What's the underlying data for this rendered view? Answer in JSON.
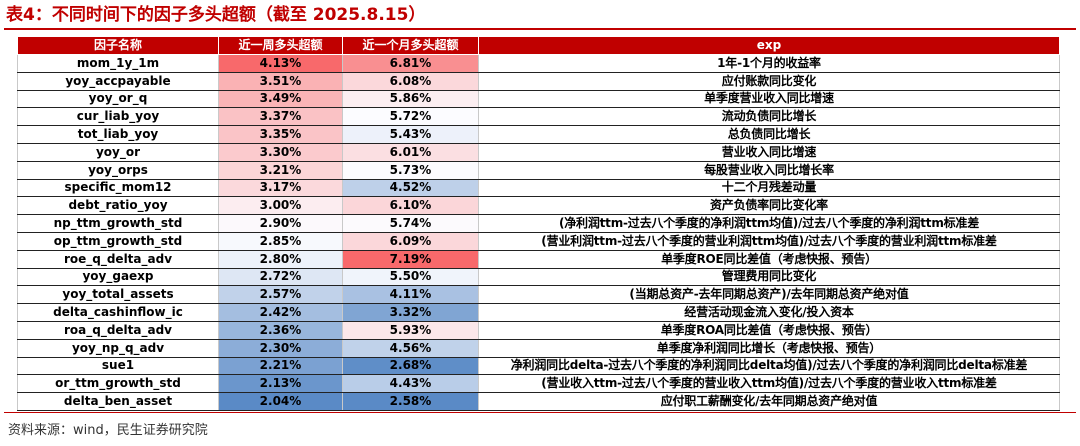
{
  "title": "表4：不同时间下的因子多头超额（截至 2025.8.15）",
  "table": {
    "headers": [
      "因子名称",
      "近一周多头超额",
      "近一个月多头超额",
      "exp"
    ],
    "rows": [
      {
        "name": "mom_1y_1m",
        "week": "4.13%",
        "week_val": 4.13,
        "month": "6.81%",
        "month_val": 6.81,
        "exp": "1年-1个月的收益率"
      },
      {
        "name": "yoy_accpayable",
        "week": "3.51%",
        "week_val": 3.51,
        "month": "6.08%",
        "month_val": 6.08,
        "exp": "应付账款同比变化"
      },
      {
        "name": "yoy_or_q",
        "week": "3.49%",
        "week_val": 3.49,
        "month": "5.86%",
        "month_val": 5.86,
        "exp": "单季度营业收入同比增速"
      },
      {
        "name": "cur_liab_yoy",
        "week": "3.37%",
        "week_val": 3.37,
        "month": "5.72%",
        "month_val": 5.72,
        "exp": "流动负债同比增长"
      },
      {
        "name": "tot_liab_yoy",
        "week": "3.35%",
        "week_val": 3.35,
        "month": "5.43%",
        "month_val": 5.43,
        "exp": "总负债同比增长"
      },
      {
        "name": "yoy_or",
        "week": "3.30%",
        "week_val": 3.3,
        "month": "6.01%",
        "month_val": 6.01,
        "exp": "营业收入同比增速"
      },
      {
        "name": "yoy_orps",
        "week": "3.21%",
        "week_val": 3.21,
        "month": "5.73%",
        "month_val": 5.73,
        "exp": "每股营业收入同比增长率"
      },
      {
        "name": "specific_mom12",
        "week": "3.17%",
        "week_val": 3.17,
        "month": "4.52%",
        "month_val": 4.52,
        "exp": "十二个月残差动量"
      },
      {
        "name": "debt_ratio_yoy",
        "week": "3.00%",
        "week_val": 3.0,
        "month": "6.10%",
        "month_val": 6.1,
        "exp": "资产负债率同比变化率"
      },
      {
        "name": "np_ttm_growth_std",
        "week": "2.90%",
        "week_val": 2.9,
        "month": "5.74%",
        "month_val": 5.74,
        "exp": "(净利润ttm-过去八个季度的净利润ttm均值)/过去八个季度的净利润ttm标准差"
      },
      {
        "name": "op_ttm_growth_std",
        "week": "2.85%",
        "week_val": 2.85,
        "month": "6.09%",
        "month_val": 6.09,
        "exp": "(营业利润ttm-过去八个季度的营业利润ttm均值)/过去八个季度的营业利润ttm标准差"
      },
      {
        "name": "roe_q_delta_adv",
        "week": "2.80%",
        "week_val": 2.8,
        "month": "7.19%",
        "month_val": 7.19,
        "exp": "单季度ROE同比差值（考虑快报、预告）"
      },
      {
        "name": "yoy_gaexp",
        "week": "2.72%",
        "week_val": 2.72,
        "month": "5.50%",
        "month_val": 5.5,
        "exp": "管理费用同比变化"
      },
      {
        "name": "yoy_total_assets",
        "week": "2.57%",
        "week_val": 2.57,
        "month": "4.11%",
        "month_val": 4.11,
        "exp": "(当期总资产-去年同期总资产)/去年同期总资产绝对值"
      },
      {
        "name": "delta_cashinflow_ic",
        "week": "2.42%",
        "week_val": 2.42,
        "month": "3.32%",
        "month_val": 3.32,
        "exp": "经营活动现金流入变化/投入资本"
      },
      {
        "name": "roa_q_delta_adv",
        "week": "2.36%",
        "week_val": 2.36,
        "month": "5.93%",
        "month_val": 5.93,
        "exp": "单季度ROA同比差值（考虑快报、预告）"
      },
      {
        "name": "yoy_np_q_adv",
        "week": "2.30%",
        "week_val": 2.3,
        "month": "4.56%",
        "month_val": 4.56,
        "exp": "单季度净利润同比增长（考虑快报、预告）"
      },
      {
        "name": "sue1",
        "week": "2.21%",
        "week_val": 2.21,
        "month": "2.68%",
        "month_val": 2.68,
        "exp": "净利润同比delta-过去八个季度的净利润同比delta均值)/过去八个季度的净利润同比delta标准差"
      },
      {
        "name": "or_ttm_growth_std",
        "week": "2.13%",
        "week_val": 2.13,
        "month": "4.43%",
        "month_val": 4.43,
        "exp": "(营业收入ttm-过去八个季度的营业收入ttm均值)/过去八个季度的营业收入ttm标准差"
      },
      {
        "name": "delta_ben_asset",
        "week": "2.04%",
        "week_val": 2.04,
        "month": "2.58%",
        "month_val": 2.58,
        "exp": "应付职工薪酬变化/去年同期总资产绝对值"
      }
    ]
  },
  "colors": {
    "header_bg": "#c00000",
    "high": "#f8696b",
    "mid": "#fcfcff",
    "low": "#5a8ac6"
  },
  "source": "资料来源：wind，民生证券研究院"
}
